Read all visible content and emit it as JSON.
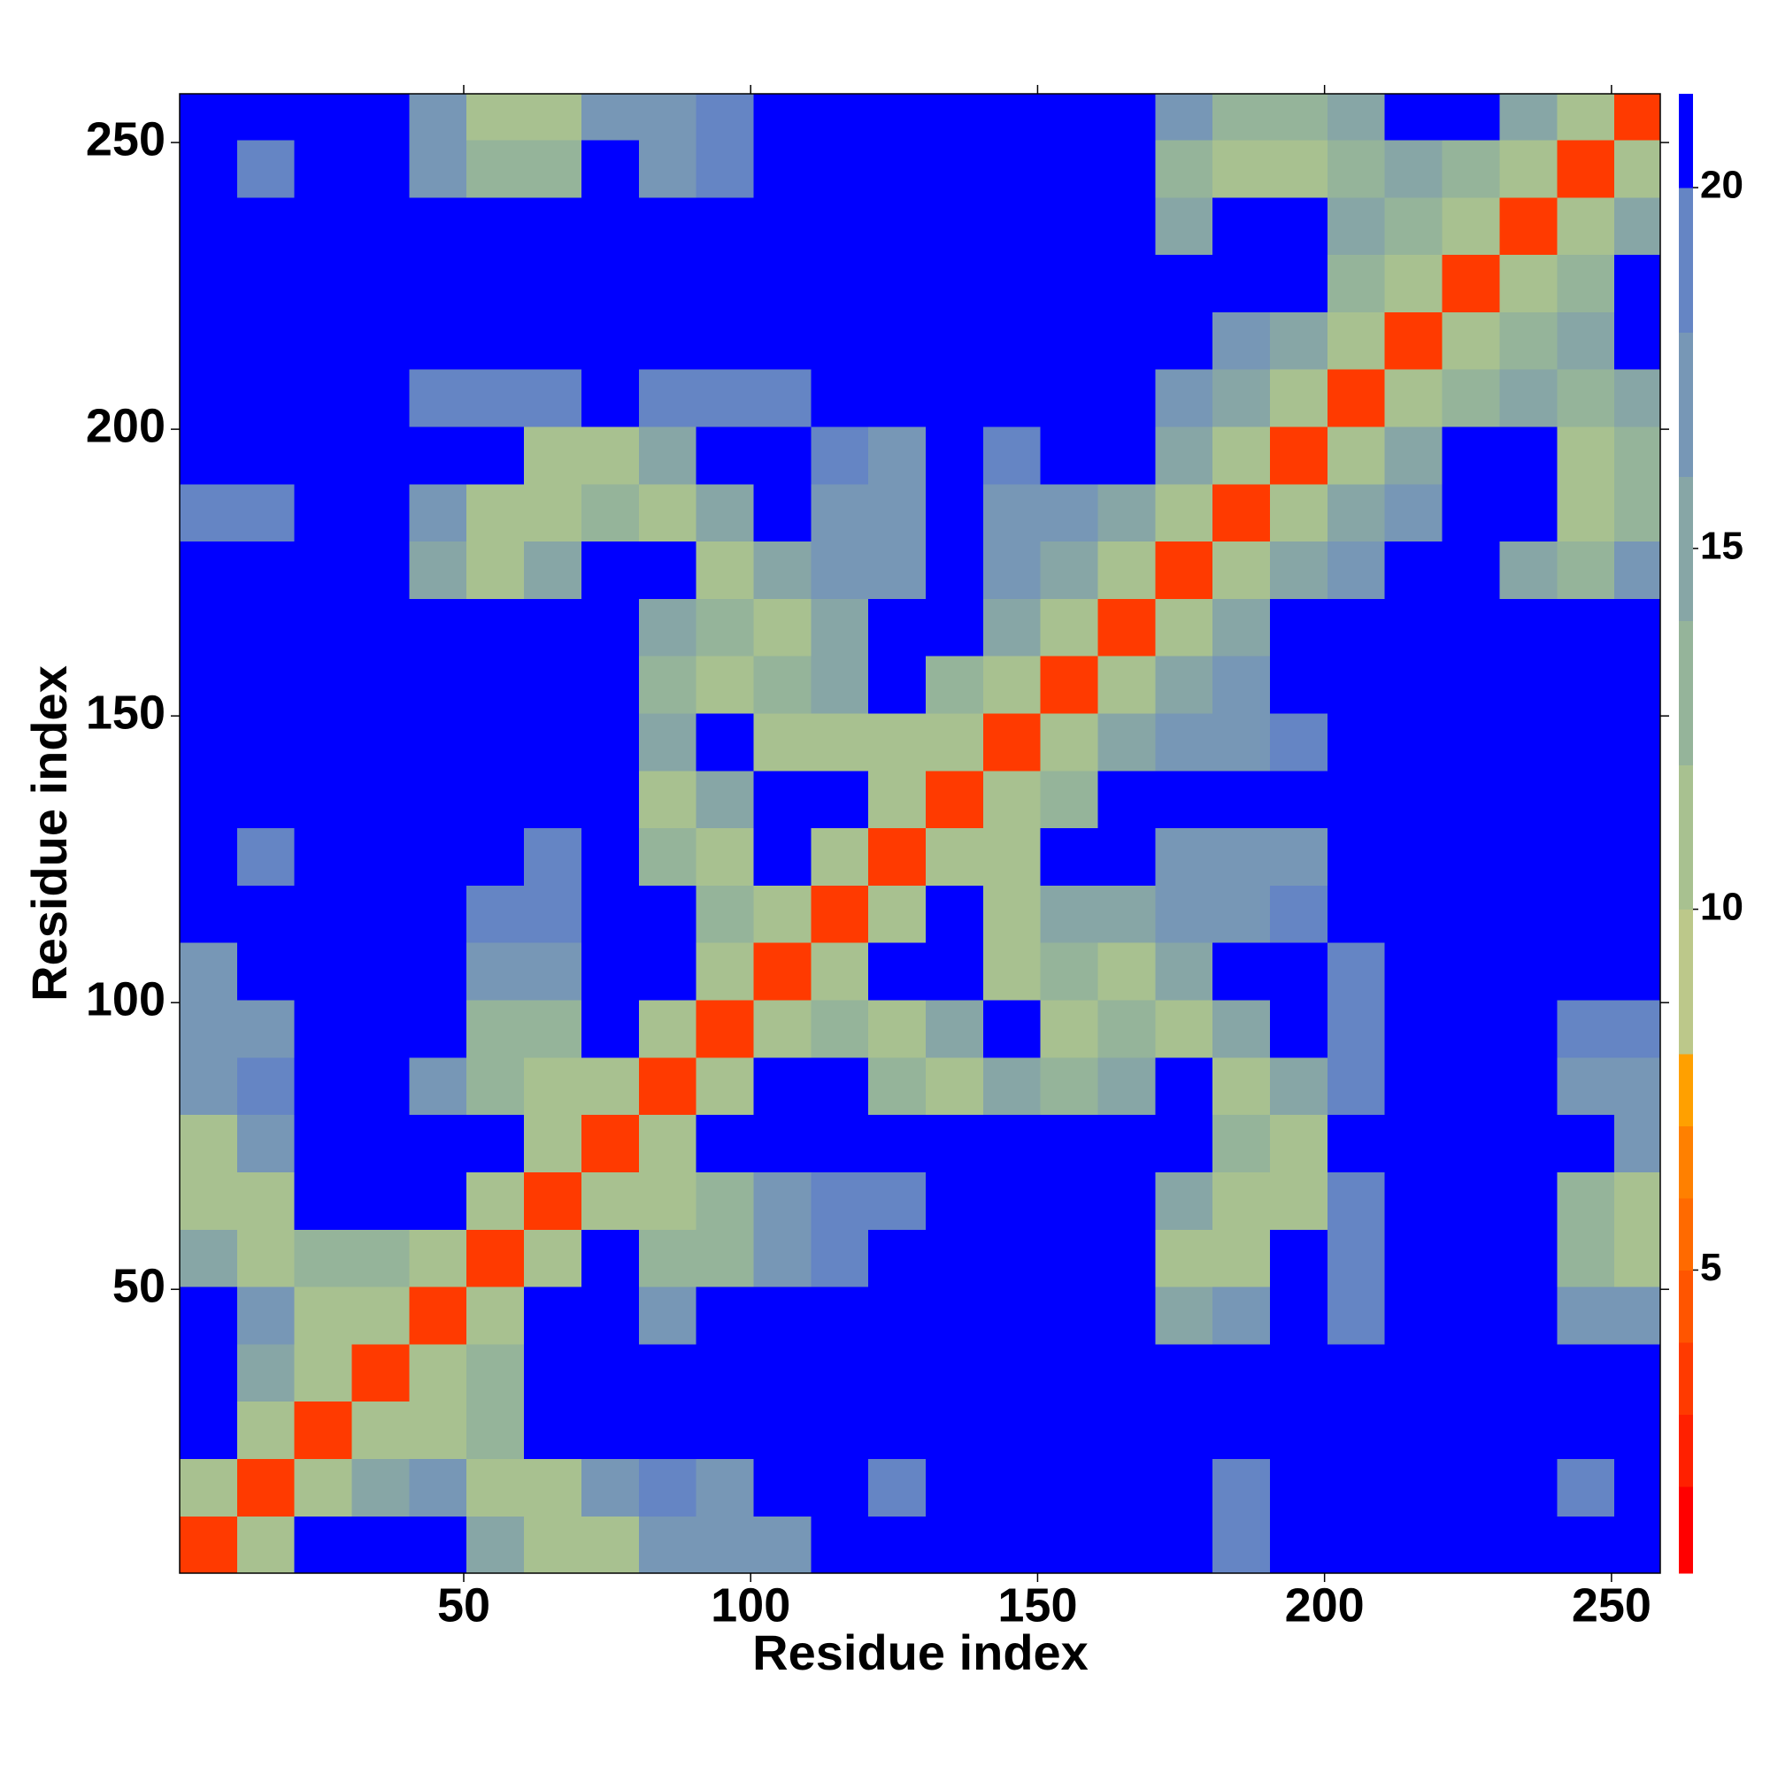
{
  "chart_data": {
    "type": "heatmap",
    "xlabel": "Residue index",
    "ylabel": "Residue index",
    "xlim": [
      0.5,
      258.5
    ],
    "ylim": [
      0.5,
      258.5
    ],
    "xticks": [
      50,
      100,
      150,
      200,
      250
    ],
    "yticks": [
      50,
      100,
      150,
      200,
      250
    ],
    "xbins": [
      0.5,
      10.5,
      20.5,
      30.5,
      40.5,
      50.5,
      60.5,
      70.5,
      80.5,
      90.5,
      100.5,
      110.5,
      120.5,
      130.5,
      140.5,
      150.5,
      160.5,
      170.5,
      180.5,
      190.5,
      200.5,
      210.5,
      220.5,
      230.5,
      240.5,
      250.5,
      258.5
    ],
    "ybins": [
      0.5,
      10.5,
      20.5,
      30.5,
      40.5,
      50.5,
      60.5,
      70.5,
      80.5,
      90.5,
      100.5,
      110.5,
      120.5,
      130.5,
      140.5,
      150.5,
      160.5,
      170.5,
      180.5,
      190.5,
      200.5,
      210.5,
      220.5,
      230.5,
      240.5,
      250.5,
      258.5
    ],
    "z": [
      [
        4,
        11,
        21,
        21,
        21,
        16,
        11,
        12,
        18,
        17,
        18,
        21,
        21,
        21,
        21,
        21,
        21,
        21,
        19,
        21,
        21,
        21,
        21,
        21,
        21,
        21
      ],
      [
        11,
        4,
        11,
        16,
        17,
        12,
        11,
        17,
        19,
        18,
        21,
        21,
        20,
        21,
        21,
        21,
        21,
        21,
        19,
        21,
        21,
        21,
        21,
        21,
        20,
        21
      ],
      [
        21,
        11,
        4,
        11,
        12,
        13,
        21,
        21,
        21,
        21,
        21,
        21,
        21,
        21,
        21,
        21,
        21,
        21,
        21,
        21,
        21,
        21,
        21,
        21,
        21,
        21
      ],
      [
        21,
        16,
        11,
        4,
        11,
        14,
        21,
        21,
        21,
        21,
        21,
        21,
        21,
        21,
        21,
        21,
        21,
        21,
        21,
        21,
        21,
        21,
        21,
        21,
        21,
        21
      ],
      [
        21,
        17,
        12,
        11,
        4,
        11,
        21,
        21,
        17,
        21,
        21,
        21,
        21,
        21,
        21,
        21,
        21,
        15,
        17,
        21,
        20,
        21,
        21,
        21,
        17,
        18
      ],
      [
        16,
        12,
        13,
        14,
        11,
        4,
        11,
        21,
        13,
        14,
        17,
        19,
        21,
        21,
        21,
        21,
        21,
        12,
        12,
        21,
        19,
        21,
        21,
        21,
        13,
        12
      ],
      [
        11,
        11,
        21,
        21,
        21,
        11,
        4,
        11,
        12,
        13,
        18,
        19,
        19,
        21,
        21,
        21,
        21,
        16,
        11,
        12,
        19,
        21,
        21,
        21,
        13,
        12
      ],
      [
        12,
        17,
        21,
        21,
        21,
        21,
        11,
        4,
        11,
        21,
        21,
        21,
        21,
        21,
        21,
        21,
        21,
        21,
        14,
        12,
        21,
        21,
        21,
        21,
        21,
        17
      ],
      [
        18,
        19,
        21,
        21,
        17,
        13,
        12,
        11,
        4,
        11,
        21,
        21,
        14,
        12,
        16,
        13,
        16,
        21,
        11,
        15,
        19,
        21,
        21,
        21,
        18,
        18
      ],
      [
        17,
        18,
        21,
        21,
        21,
        14,
        13,
        21,
        11,
        4,
        11,
        14,
        11,
        15,
        21,
        12,
        14,
        11,
        15,
        21,
        19,
        21,
        21,
        21,
        19,
        19
      ],
      [
        18,
        21,
        21,
        21,
        21,
        17,
        18,
        21,
        21,
        11,
        4,
        11,
        21,
        21,
        11,
        14,
        12,
        15,
        21,
        21,
        20,
        21,
        21,
        21,
        21,
        21
      ],
      [
        21,
        21,
        21,
        21,
        21,
        19,
        19,
        21,
        21,
        14,
        11,
        4,
        11,
        21,
        12,
        15,
        15,
        17,
        18,
        19,
        21,
        21,
        21,
        21,
        21,
        21
      ],
      [
        21,
        20,
        21,
        21,
        21,
        21,
        19,
        21,
        14,
        11,
        21,
        11,
        4,
        11,
        12,
        21,
        21,
        17,
        17,
        18,
        21,
        21,
        21,
        21,
        21,
        21
      ],
      [
        21,
        21,
        21,
        21,
        21,
        21,
        21,
        21,
        12,
        15,
        21,
        21,
        11,
        4,
        11,
        14,
        21,
        21,
        21,
        21,
        21,
        21,
        21,
        21,
        21,
        21
      ],
      [
        21,
        21,
        21,
        21,
        21,
        21,
        21,
        21,
        16,
        21,
        11,
        12,
        12,
        11,
        4,
        11,
        15,
        17,
        18,
        19,
        21,
        21,
        21,
        21,
        21,
        21
      ],
      [
        21,
        21,
        21,
        21,
        21,
        21,
        21,
        21,
        13,
        12,
        14,
        15,
        21,
        14,
        11,
        4,
        11,
        16,
        17,
        21,
        21,
        21,
        21,
        21,
        21,
        21
      ],
      [
        21,
        21,
        21,
        21,
        21,
        21,
        21,
        21,
        16,
        14,
        12,
        15,
        21,
        21,
        15,
        11,
        4,
        11,
        15,
        21,
        21,
        21,
        21,
        21,
        21,
        21
      ],
      [
        21,
        21,
        21,
        21,
        15,
        12,
        16,
        21,
        21,
        11,
        15,
        17,
        17,
        21,
        17,
        16,
        11,
        4,
        11,
        15,
        17,
        21,
        21,
        16,
        14,
        17
      ],
      [
        19,
        19,
        21,
        21,
        17,
        12,
        11,
        14,
        11,
        15,
        21,
        18,
        17,
        21,
        18,
        17,
        15,
        11,
        4,
        11,
        15,
        17,
        21,
        21,
        12,
        13
      ],
      [
        21,
        21,
        21,
        21,
        21,
        21,
        12,
        12,
        15,
        21,
        21,
        19,
        18,
        21,
        19,
        21,
        21,
        15,
        11,
        4,
        11,
        15,
        21,
        21,
        12,
        13
      ],
      [
        21,
        21,
        21,
        21,
        20,
        19,
        19,
        21,
        19,
        19,
        20,
        21,
        21,
        21,
        21,
        21,
        21,
        17,
        15,
        11,
        4,
        11,
        14,
        16,
        13,
        15
      ],
      [
        21,
        21,
        21,
        21,
        21,
        21,
        21,
        21,
        21,
        21,
        21,
        21,
        21,
        21,
        21,
        21,
        21,
        21,
        17,
        15,
        11,
        4,
        11,
        13,
        16,
        21
      ],
      [
        21,
        21,
        21,
        21,
        21,
        21,
        21,
        21,
        21,
        21,
        21,
        21,
        21,
        21,
        21,
        21,
        21,
        21,
        21,
        21,
        14,
        11,
        4,
        11,
        14,
        21
      ],
      [
        21,
        21,
        21,
        21,
        21,
        21,
        21,
        21,
        21,
        21,
        21,
        21,
        21,
        21,
        21,
        21,
        21,
        16,
        21,
        21,
        16,
        13,
        11,
        4,
        11,
        15
      ],
      [
        21,
        20,
        21,
        21,
        17,
        13,
        13,
        21,
        18,
        19,
        21,
        21,
        21,
        21,
        21,
        21,
        21,
        14,
        12,
        12,
        13,
        16,
        14,
        11,
        4,
        11
      ],
      [
        21,
        21,
        21,
        21,
        18,
        12,
        12,
        17,
        18,
        19,
        21,
        21,
        21,
        21,
        21,
        21,
        21,
        17,
        13,
        13,
        15,
        21,
        21,
        15,
        11,
        4
      ]
    ],
    "colorbar": {
      "levels": [
        0.8,
        2,
        3,
        4,
        5,
        6,
        7,
        8,
        10,
        12,
        14,
        16,
        18,
        20,
        21.3
      ],
      "colors": [
        "#ff0000",
        "#ff2000",
        "#ff3a00",
        "#ff5500",
        "#ff6a00",
        "#ff8000",
        "#ffa000",
        "#bcc88a",
        "#a8c190",
        "#95b49a",
        "#87a6a6",
        "#7797b6",
        "#6585c4",
        "#0000ff"
      ],
      "ticks": [
        5,
        10,
        15,
        20
      ]
    }
  }
}
